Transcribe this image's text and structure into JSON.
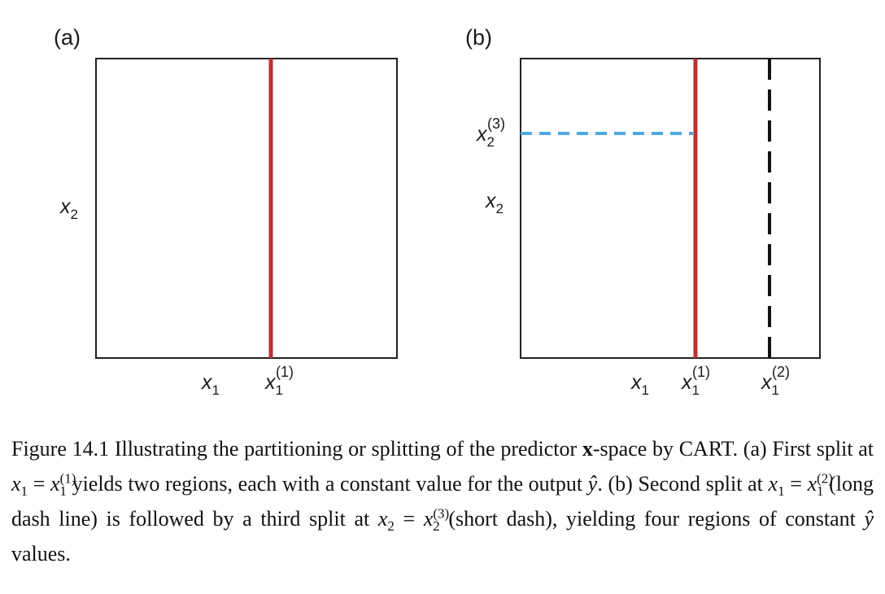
{
  "panels": [
    {
      "letter": "(a)",
      "y_label": {
        "base": "x",
        "sub": "2"
      },
      "x_label": {
        "base": "x",
        "sub": "1"
      },
      "splits": [
        {
          "axis": "x1",
          "label_base": "x",
          "label_sub": "1",
          "label_sup": "(1)",
          "style": "solid",
          "color": "#c03030"
        }
      ]
    },
    {
      "letter": "(b)",
      "y_label": {
        "base": "x",
        "sub": "2"
      },
      "x_label": {
        "base": "x",
        "sub": "1"
      },
      "splits": [
        {
          "axis": "x1",
          "label_base": "x",
          "label_sub": "1",
          "label_sup": "(1)",
          "style": "solid",
          "color": "#c03030"
        },
        {
          "axis": "x1",
          "label_base": "x",
          "label_sub": "1",
          "label_sup": "(2)",
          "style": "long-dash",
          "color": "#111111"
        },
        {
          "axis": "x2",
          "label_base": "x",
          "label_sub": "2",
          "label_sup": "(3)",
          "style": "short-dash",
          "color": "#4ea8e0"
        }
      ]
    }
  ],
  "caption": {
    "figure_number": "Figure 14.1",
    "t1": "Illustrating the partitioning or splitting of the predictor",
    "vec": "x",
    "t2": "-space by CART. (a) First split at",
    "t3": "yields two regions, each with a constant value for the output",
    "t4": ". (b) Second split at",
    "t5": "(long dash line) is followed by a third split at",
    "t6": "(short dash), yielding four regions of constant",
    "t7": "values.",
    "eq": "=",
    "x": "x",
    "yhat": "ŷ",
    "one": "1",
    "two": "2",
    "s1": "(1)",
    "s2": "(2)",
    "s3": "(3)"
  }
}
